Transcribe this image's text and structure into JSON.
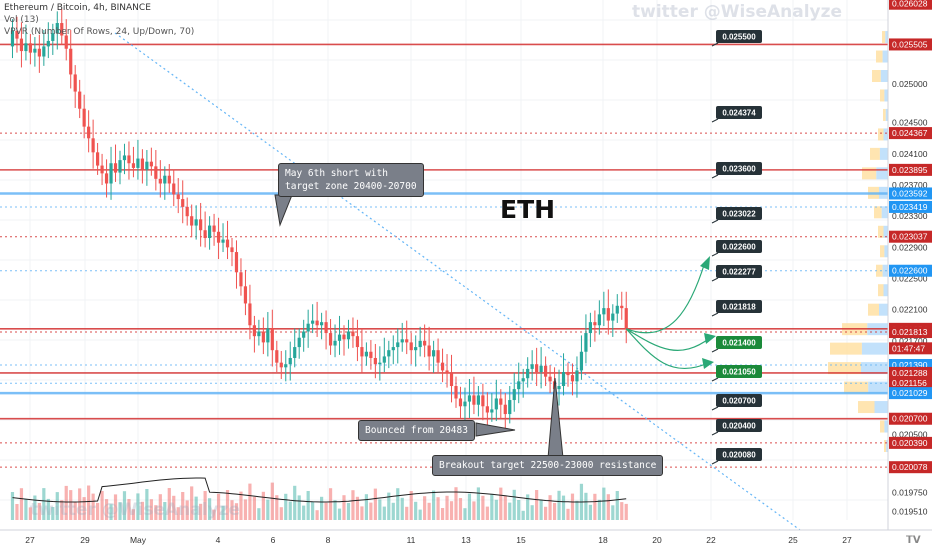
{
  "header": {
    "line1": "Ethereum / Bitcoin, 4h, BINANCE",
    "line2": "Vol (13)",
    "line3": "VPVR (Number Of Rows, 24, Up/Down, 70)"
  },
  "watermark": "twitter @WiseAnalyze",
  "chart_title": "ETH",
  "callouts": {
    "short": [
      "May 6th short with",
      "target zone 20400-20700"
    ],
    "bounce": "Bounced from 20483",
    "breakout": "Breakout target 22500-23000 resistance"
  },
  "x_axis": [
    "27",
    "29",
    "May",
    "4",
    "6",
    "8",
    "11",
    "13",
    "15",
    "18",
    "20",
    "22",
    "25",
    "27"
  ],
  "y_axis_ticks": [
    "0.025000",
    "0.024500",
    "0.024100",
    "0.023700",
    "0.023300",
    "0.022900",
    "0.022500",
    "0.022100",
    "0.021700",
    "0.020500",
    "0.020100",
    "0.019750",
    "0.019510"
  ],
  "price_badges": [
    "0.026028",
    "0.025505",
    "0.024367",
    "0.023895",
    "0.023592",
    "0.023419",
    "0.023037",
    "0.022600",
    "0.021854",
    "01:47:47",
    "0.021813",
    "0.021390",
    "0.021288",
    "0.021156",
    "0.021029",
    "0.020700",
    "0.020390",
    "0.020078"
  ],
  "level_tags": [
    "0.025500",
    "0.024374",
    "0.023600",
    "0.023022",
    "0.022600",
    "0.022277",
    "0.021818",
    "0.021400",
    "0.021050",
    "0.020700",
    "0.020400",
    "0.020080"
  ],
  "colors": {
    "up": "#26a69a",
    "down": "#ef5350",
    "red_level": "#d32f2f",
    "blue_level": "#64b5f6",
    "tag_dark": "#263238",
    "tag_green": "#1b8a3a",
    "projection": "#2aa876"
  },
  "chart_data": {
    "type": "candlestick",
    "symbol": "ETH/BTC",
    "timeframe": "4h",
    "ylim": [
      0.0194,
      0.02605
    ],
    "last_price": 0.021854,
    "countdown": "01:47:47",
    "support_resistance_red": [
      0.025505,
      0.024367,
      0.023895,
      0.023037,
      0.021854,
      0.021813,
      0.021288,
      0.0207,
      0.02039,
      0.020078
    ],
    "support_resistance_blue": [
      0.023592,
      0.023419,
      0.0226,
      0.02139,
      0.021156,
      0.021029
    ],
    "price_path": [
      0.02548,
      0.02568,
      0.02558,
      0.02542,
      0.02552,
      0.0254,
      0.02545,
      0.02535,
      0.02548,
      0.02555,
      0.02565,
      0.02578,
      0.02562,
      0.02545,
      0.02512,
      0.0249,
      0.02468,
      0.02445,
      0.0243,
      0.02412,
      0.02395,
      0.02385,
      0.02372,
      0.02398,
      0.02386,
      0.02402,
      0.02408,
      0.02398,
      0.02392,
      0.02404,
      0.0239,
      0.024,
      0.02394,
      0.02378,
      0.02372,
      0.02382,
      0.02372,
      0.02358,
      0.02352,
      0.02342,
      0.0233,
      0.02318,
      0.02326,
      0.02312,
      0.02302,
      0.02318,
      0.0231,
      0.02296,
      0.023,
      0.0229,
      0.02284,
      0.02258,
      0.0224,
      0.02218,
      0.0219,
      0.02176,
      0.02182,
      0.02168,
      0.02186,
      0.02158,
      0.02142,
      0.02136,
      0.0214,
      0.02148,
      0.02162,
      0.02174,
      0.02182,
      0.02192,
      0.02196,
      0.0219,
      0.02194,
      0.0218,
      0.02164,
      0.0217,
      0.02178,
      0.02172,
      0.02182,
      0.02176,
      0.02162,
      0.0215,
      0.02156,
      0.02148,
      0.0214,
      0.02142,
      0.0215,
      0.02158,
      0.02162,
      0.02168,
      0.02172,
      0.02168,
      0.02158,
      0.02162,
      0.0217,
      0.02164,
      0.0215,
      0.02158,
      0.02142,
      0.02132,
      0.02128,
      0.02112,
      0.02096,
      0.02086,
      0.02092,
      0.021,
      0.02088,
      0.021,
      0.02086,
      0.02078,
      0.02082,
      0.02096,
      0.02088,
      0.02076,
      0.02094,
      0.02108,
      0.02118,
      0.02122,
      0.02134,
      0.0214,
      0.0213,
      0.02138,
      0.02124,
      0.02118,
      0.02108,
      0.02112,
      0.0213,
      0.02126,
      0.02118,
      0.02132,
      0.02156,
      0.0218,
      0.02194,
      0.0219,
      0.02204,
      0.02212,
      0.02196,
      0.02205,
      0.02215,
      0.02212,
      0.02185
    ],
    "volume_profile": "VPVR (24 rows)"
  }
}
